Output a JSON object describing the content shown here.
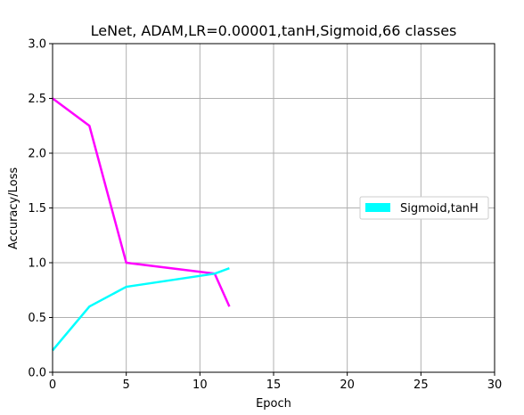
{
  "chart_data": {
    "type": "line",
    "title": "LeNet, ADAM,LR=0.00001,tanH,Sigmoid,66 classes",
    "xlabel": "Epoch",
    "ylabel": "Accuracy/Loss",
    "xlim": [
      0,
      30
    ],
    "ylim": [
      0,
      3.0
    ],
    "xticks": [
      "0",
      "5",
      "10",
      "15",
      "20",
      "25",
      "30"
    ],
    "xtick_values": [
      0,
      5,
      10,
      15,
      20,
      25,
      30
    ],
    "yticks": [
      "0.0",
      "0.5",
      "1.0",
      "1.5",
      "2.0",
      "2.5",
      "3.0"
    ],
    "ytick_values": [
      0,
      0.5,
      1.0,
      1.5,
      2.0,
      2.5,
      3.0
    ],
    "grid": true,
    "legend": {
      "placement": "center-right",
      "entries": [
        {
          "label": "Sigmoid,tanH",
          "color": "#00ffff"
        }
      ]
    },
    "series": [
      {
        "color": "#ff00ff",
        "x": [
          0,
          2.5,
          5,
          11,
          12
        ],
        "y": [
          2.5,
          2.25,
          1.0,
          0.9,
          0.6
        ]
      },
      {
        "name": "Sigmoid,tanH",
        "color": "#00ffff",
        "x": [
          0,
          2.5,
          5,
          11,
          12
        ],
        "y": [
          0.2,
          0.6,
          0.78,
          0.9,
          0.95
        ]
      }
    ]
  }
}
